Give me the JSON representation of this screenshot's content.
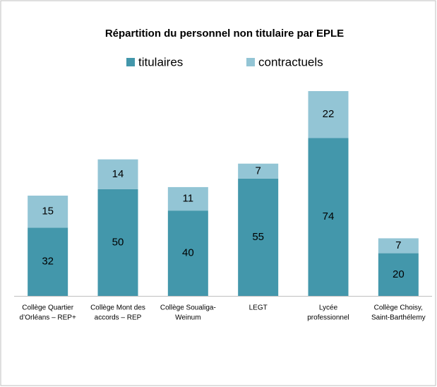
{
  "chart_data": {
    "type": "stacked_bar",
    "title": "Répartition du  personnel non titulaire par EPLE",
    "categories": [
      [
        "Collège Quartier",
        "d’Orléans – REP+"
      ],
      [
        "Collège Mont des",
        "accords – REP"
      ],
      [
        "Collège Soualiga-",
        "Weinum"
      ],
      [
        "LEGT"
      ],
      [
        "Lycée",
        "professionnel"
      ],
      [
        "Collège Choisy,",
        "Saint-Barthélemy"
      ]
    ],
    "series": [
      {
        "name": "titulaires",
        "color": "#4397ab",
        "values": [
          32,
          50,
          40,
          55,
          74,
          20
        ]
      },
      {
        "name": "contractuels",
        "color": "#93c5d5",
        "values": [
          15,
          14,
          11,
          7,
          22,
          7
        ]
      }
    ],
    "legend": "top"
  }
}
